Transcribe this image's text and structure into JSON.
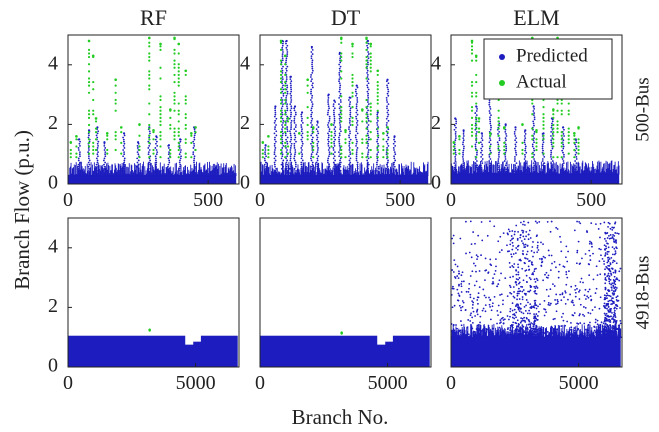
{
  "figure": {
    "xlabel": "Branch No.",
    "ylabel": "Branch Flow (p.u.)",
    "column_titles": [
      "RF",
      "DT",
      "ELM"
    ],
    "row_labels": [
      "500-Bus",
      "4918-Bus"
    ],
    "legend": {
      "placement": "top-right of ELM 500-Bus panel",
      "entries": [
        {
          "label": "Predicted",
          "color": "#1c1cbf"
        },
        {
          "label": "Actual",
          "color": "#22cc22"
        }
      ]
    }
  },
  "chart_data": [
    {
      "type": "scatter",
      "row": "500-Bus",
      "column": "RF",
      "xlim": [
        0,
        610
      ],
      "ylim": [
        0,
        5
      ],
      "xticks": [
        "0",
        "500"
      ],
      "yticks": [
        "0",
        "2",
        "4"
      ],
      "series": [
        {
          "name": "Predicted",
          "baseline_level": 0.3,
          "x_extent": [
            0,
            600
          ],
          "spikes": [
            [
              40,
              1.5
            ],
            [
              75,
              1.8
            ],
            [
              105,
              1.9
            ],
            [
              130,
              1.4
            ],
            [
              200,
              1.7
            ],
            [
              250,
              1.4
            ],
            [
              290,
              1.9
            ],
            [
              315,
              1.6
            ],
            [
              360,
              1.3
            ],
            [
              400,
              1.5
            ],
            [
              450,
              1.9
            ]
          ]
        },
        {
          "name": "Actual",
          "spikes": [
            [
              10,
              1.4
            ],
            [
              30,
              1.6
            ],
            [
              75,
              4.8
            ],
            [
              90,
              4.3
            ],
            [
              100,
              2.2
            ],
            [
              140,
              1.7
            ],
            [
              170,
              3.5
            ],
            [
              190,
              1.9
            ],
            [
              255,
              2.0
            ],
            [
              290,
              4.9
            ],
            [
              305,
              1.8
            ],
            [
              330,
              4.7
            ],
            [
              365,
              2.5
            ],
            [
              380,
              4.9
            ],
            [
              395,
              4.7
            ],
            [
              420,
              3.8
            ],
            [
              440,
              1.7
            ],
            [
              455,
              1.9
            ]
          ]
        }
      ]
    },
    {
      "type": "scatter",
      "row": "500-Bus",
      "column": "DT",
      "xlim": [
        0,
        610
      ],
      "ylim": [
        0,
        5
      ],
      "xticks": [
        "0",
        "500"
      ],
      "yticks": [
        "0",
        "2",
        "4"
      ],
      "series": [
        {
          "name": "Predicted",
          "baseline_level": 0.3,
          "x_extent": [
            0,
            600
          ],
          "spikes": [
            [
              20,
              1.3
            ],
            [
              55,
              2.6
            ],
            [
              80,
              4.8
            ],
            [
              95,
              4.8
            ],
            [
              110,
              3.6
            ],
            [
              125,
              2.6
            ],
            [
              150,
              2.4
            ],
            [
              185,
              4.6
            ],
            [
              205,
              2.1
            ],
            [
              245,
              3.0
            ],
            [
              265,
              2.8
            ],
            [
              285,
              4.4
            ],
            [
              320,
              2.9
            ],
            [
              345,
              3.3
            ],
            [
              385,
              4.8
            ],
            [
              420,
              2.4
            ],
            [
              455,
              3.5
            ],
            [
              480,
              1.6
            ]
          ]
        },
        {
          "name": "Actual",
          "spikes": [
            [
              10,
              1.4
            ],
            [
              30,
              1.6
            ],
            [
              75,
              4.8
            ],
            [
              90,
              4.3
            ],
            [
              100,
              2.2
            ],
            [
              140,
              1.7
            ],
            [
              170,
              3.5
            ],
            [
              190,
              1.9
            ],
            [
              255,
              2.0
            ],
            [
              290,
              4.9
            ],
            [
              305,
              1.8
            ],
            [
              330,
              4.7
            ],
            [
              365,
              2.5
            ],
            [
              380,
              4.9
            ],
            [
              395,
              4.7
            ],
            [
              420,
              3.8
            ],
            [
              440,
              1.7
            ],
            [
              455,
              1.9
            ]
          ]
        }
      ]
    },
    {
      "type": "scatter",
      "row": "500-Bus",
      "column": "ELM",
      "xlim": [
        0,
        610
      ],
      "ylim": [
        0,
        5
      ],
      "xticks": [
        "0",
        "500"
      ],
      "yticks": [
        "0",
        "2",
        "4"
      ],
      "series": [
        {
          "name": "Predicted",
          "baseline_level": 0.35,
          "x_extent": [
            0,
            600
          ],
          "spikes": [
            [
              15,
              2.2
            ],
            [
              45,
              1.8
            ],
            [
              90,
              2.6
            ],
            [
              110,
              1.7
            ],
            [
              140,
              3.2
            ],
            [
              170,
              2.1
            ],
            [
              195,
              2.0
            ],
            [
              230,
              1.9
            ],
            [
              265,
              1.8
            ],
            [
              295,
              2.6
            ],
            [
              330,
              1.7
            ],
            [
              360,
              2.2
            ],
            [
              400,
              1.9
            ],
            [
              445,
              1.5
            ]
          ]
        },
        {
          "name": "Actual",
          "spikes": [
            [
              10,
              1.4
            ],
            [
              30,
              1.6
            ],
            [
              75,
              4.8
            ],
            [
              90,
              4.3
            ],
            [
              100,
              2.2
            ],
            [
              140,
              1.7
            ],
            [
              170,
              3.5
            ],
            [
              190,
              1.9
            ],
            [
              255,
              2.0
            ],
            [
              290,
              4.9
            ],
            [
              305,
              1.8
            ],
            [
              330,
              4.7
            ],
            [
              365,
              2.5
            ],
            [
              380,
              4.9
            ],
            [
              395,
              4.7
            ],
            [
              420,
              3.8
            ],
            [
              440,
              1.7
            ],
            [
              455,
              1.9
            ]
          ]
        }
      ]
    },
    {
      "type": "scatter",
      "row": "4918-Bus",
      "column": "RF",
      "xlim": [
        0,
        6700
      ],
      "ylim": [
        0,
        5
      ],
      "xticks": [
        "0",
        "5000"
      ],
      "yticks": [
        "0",
        "2",
        "4"
      ],
      "series": [
        {
          "name": "Predicted",
          "baseline_level": 1.05,
          "x_extent": [
            0,
            6650
          ],
          "gaps": [
            [
              4750,
              0.75
            ],
            [
              5050,
              0.85
            ]
          ]
        },
        {
          "name": "Actual",
          "spikes": [
            [
              3200,
              1.25
            ]
          ]
        }
      ]
    },
    {
      "type": "scatter",
      "row": "4918-Bus",
      "column": "DT",
      "xlim": [
        0,
        6700
      ],
      "ylim": [
        0,
        5
      ],
      "xticks": [
        "0",
        "5000"
      ],
      "yticks": [],
      "series": [
        {
          "name": "Predicted",
          "baseline_level": 1.05,
          "x_extent": [
            0,
            6650
          ],
          "gaps": [
            [
              4750,
              0.75
            ],
            [
              5050,
              0.85
            ]
          ]
        },
        {
          "name": "Actual",
          "spikes": [
            [
              3200,
              1.15
            ]
          ]
        }
      ]
    },
    {
      "type": "scatter",
      "row": "4918-Bus",
      "column": "ELM",
      "xlim": [
        0,
        6700
      ],
      "ylim": [
        0,
        5
      ],
      "xticks": [
        "0",
        "5000"
      ],
      "yticks": [],
      "series": [
        {
          "name": "Predicted",
          "baseline_level": 1.0,
          "x_extent": [
            0,
            6650
          ],
          "scatter_cloud_upper": 4.9,
          "dense_regions": [
            [
              2300,
              3400
            ],
            [
              6000,
              6500
            ]
          ]
        }
      ]
    }
  ]
}
